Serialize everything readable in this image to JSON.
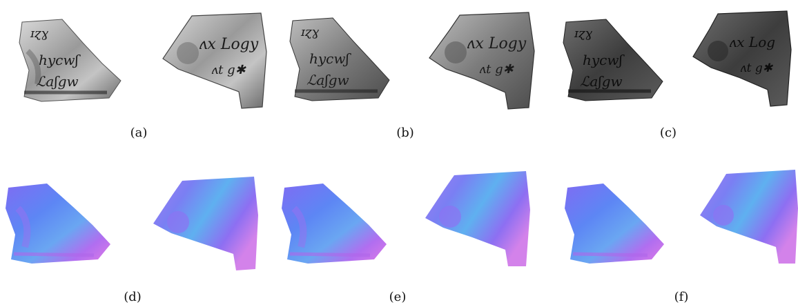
{
  "figure": {
    "rows": [
      {
        "kind": "photograph",
        "panels": [
          {
            "id": "a",
            "caption": "(a)"
          },
          {
            "id": "b",
            "caption": "(b)"
          },
          {
            "id": "c",
            "caption": "(c)"
          }
        ]
      },
      {
        "kind": "normal-map",
        "panels": [
          {
            "id": "d",
            "caption": "(d)"
          },
          {
            "id": "e",
            "caption": "(e)"
          },
          {
            "id": "f",
            "caption": "(f)"
          }
        ]
      }
    ],
    "colors": {
      "background": "#ffffff",
      "normal_blue": "#5b7cf5",
      "normal_violet": "#a25cf2",
      "normal_pink": "#e07ce6",
      "normal_cyan": "#5fb0f0",
      "stone_light": "#cfcfcf",
      "stone_dark": "#3a3a3a",
      "ink": "#1a1a1a"
    }
  }
}
